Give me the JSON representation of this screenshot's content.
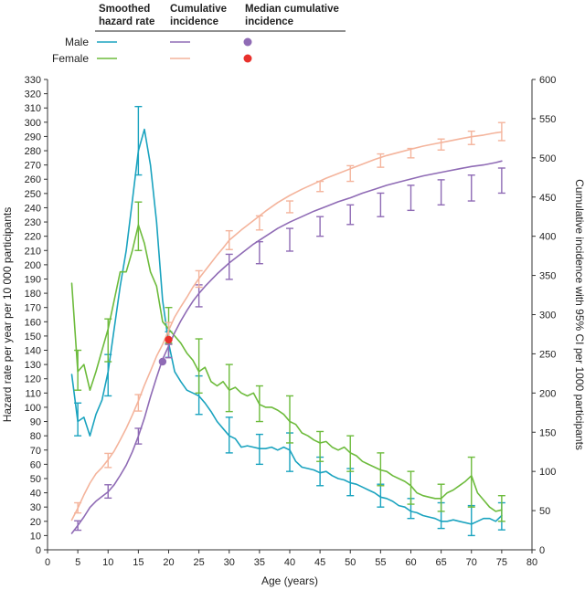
{
  "legend": {
    "headers": [
      "Smoothed\nhazard rate",
      "Cumulative\nincidence",
      "Median cumulative\nincidence"
    ],
    "rows": [
      "Male",
      "Female"
    ]
  },
  "colors": {
    "male_hazard": "#1aa3bf",
    "female_hazard": "#6dbb3c",
    "male_cumulative": "#8f6bb5",
    "female_cumulative": "#f4b49c",
    "male_median": "#8f6bb5",
    "female_median": "#e8312c",
    "axis": "#333333"
  },
  "chart_data": {
    "type": "line",
    "xlabel": "Age (years)",
    "ylabel": "Hazard rate per year per 10 000 participants",
    "y2label": "Cumulative incidence with 95% CI per 1000 participants",
    "xlim": [
      0,
      80
    ],
    "ylim": [
      0,
      330
    ],
    "y2lim": [
      0,
      600
    ],
    "xticks": [
      "0",
      "5",
      "10",
      "15",
      "20",
      "25",
      "30",
      "35",
      "40",
      "45",
      "50",
      "55",
      "60",
      "65",
      "70",
      "75",
      "80"
    ],
    "yticks": [
      "0",
      "10",
      "20",
      "30",
      "40",
      "50",
      "60",
      "70",
      "80",
      "90",
      "100",
      "110",
      "120",
      "130",
      "140",
      "150",
      "160",
      "170",
      "180",
      "190",
      "200",
      "210",
      "220",
      "230",
      "240",
      "250",
      "260",
      "270",
      "280",
      "290",
      "300",
      "310",
      "320",
      "330"
    ],
    "y2ticks": [
      "0",
      "50",
      "100",
      "150",
      "200",
      "250",
      "300",
      "350",
      "400",
      "450",
      "500",
      "550",
      "600"
    ],
    "series": [
      {
        "name": "Male",
        "kind": "smoothed hazard rate",
        "axis": "left",
        "x": [
          4,
          5,
          6,
          7,
          8,
          9,
          10,
          11,
          12,
          13,
          14,
          15,
          16,
          17,
          18,
          19,
          20,
          21,
          22,
          23,
          24,
          25,
          26,
          27,
          28,
          29,
          30,
          31,
          32,
          33,
          34,
          35,
          36,
          37,
          38,
          39,
          40,
          41,
          42,
          43,
          44,
          45,
          46,
          47,
          48,
          49,
          50,
          51,
          52,
          53,
          54,
          55,
          56,
          57,
          58,
          59,
          60,
          61,
          62,
          63,
          64,
          65,
          66,
          67,
          68,
          69,
          70,
          71,
          72,
          73,
          74,
          75
        ],
        "y": [
          123,
          90,
          93,
          80,
          95,
          105,
          125,
          155,
          185,
          210,
          245,
          280,
          295,
          270,
          230,
          175,
          145,
          125,
          118,
          112,
          110,
          108,
          103,
          97,
          90,
          85,
          80,
          78,
          72,
          73,
          72,
          71,
          71,
          72,
          70,
          72,
          70,
          62,
          58,
          57,
          56,
          54,
          55,
          52,
          50,
          49,
          47,
          46,
          44,
          42,
          40,
          37,
          36,
          34,
          31,
          30,
          27,
          26,
          24,
          23,
          22,
          20,
          20,
          21,
          20,
          19,
          18,
          20,
          22,
          22,
          20,
          24
        ],
        "ci_x": [
          5,
          10,
          15,
          20,
          25,
          30,
          35,
          40,
          45,
          50,
          55,
          60,
          65,
          70,
          75
        ],
        "ci_low": [
          80,
          108,
          263,
          135,
          95,
          68,
          60,
          55,
          45,
          38,
          30,
          22,
          15,
          10,
          14
        ],
        "ci_high": [
          103,
          137,
          311,
          153,
          122,
          93,
          81,
          82,
          65,
          57,
          46,
          36,
          33,
          31,
          33
        ]
      },
      {
        "name": "Female",
        "kind": "smoothed hazard rate",
        "axis": "left",
        "x": [
          4,
          5,
          6,
          7,
          8,
          9,
          10,
          11,
          12,
          13,
          14,
          15,
          16,
          17,
          18,
          19,
          20,
          21,
          22,
          23,
          24,
          25,
          26,
          27,
          28,
          29,
          30,
          31,
          32,
          33,
          34,
          35,
          36,
          37,
          38,
          39,
          40,
          41,
          42,
          43,
          44,
          45,
          46,
          47,
          48,
          49,
          50,
          51,
          52,
          53,
          54,
          55,
          56,
          57,
          58,
          59,
          60,
          61,
          62,
          63,
          64,
          65,
          66,
          67,
          68,
          69,
          70,
          71,
          72,
          73,
          74,
          75
        ],
        "y": [
          187,
          125,
          130,
          112,
          125,
          140,
          155,
          175,
          195,
          195,
          210,
          228,
          215,
          195,
          185,
          160,
          155,
          150,
          145,
          138,
          133,
          125,
          128,
          118,
          115,
          118,
          112,
          114,
          110,
          108,
          110,
          102,
          100,
          100,
          98,
          95,
          90,
          88,
          82,
          80,
          77,
          75,
          76,
          72,
          70,
          72,
          68,
          66,
          62,
          60,
          58,
          56,
          55,
          52,
          50,
          48,
          45,
          40,
          38,
          37,
          36,
          36,
          40,
          42,
          45,
          48,
          52,
          40,
          35,
          30,
          27,
          28
        ],
        "ci_x": [
          5,
          10,
          15,
          20,
          25,
          30,
          35,
          40,
          45,
          50,
          55,
          60,
          65,
          70,
          75
        ],
        "ci_low": [
          112,
          132,
          210,
          145,
          110,
          97,
          90,
          75,
          62,
          55,
          45,
          32,
          27,
          30,
          20
        ],
        "ci_high": [
          140,
          162,
          244,
          170,
          148,
          130,
          115,
          108,
          83,
          80,
          68,
          55,
          46,
          65,
          38
        ]
      },
      {
        "name": "Male",
        "kind": "cumulative incidence",
        "axis": "right",
        "x": [
          4,
          5,
          6,
          7,
          8,
          9,
          10,
          11,
          12,
          13,
          14,
          15,
          16,
          17,
          18,
          19,
          20,
          21,
          22,
          23,
          24,
          25,
          26,
          27,
          28,
          29,
          30,
          32,
          34,
          36,
          38,
          40,
          42,
          44,
          46,
          48,
          50,
          52,
          54,
          56,
          58,
          60,
          62,
          64,
          66,
          68,
          70,
          72,
          74,
          75
        ],
        "y": [
          21,
          31,
          42,
          54,
          62,
          68,
          74,
          83,
          95,
          108,
          125,
          145,
          168,
          195,
          220,
          243,
          260,
          277,
          292,
          305,
          317,
          327,
          336,
          344,
          352,
          359,
          366,
          378,
          390,
          400,
          410,
          418,
          425,
          432,
          438,
          444,
          449,
          455,
          460,
          465,
          469,
          473,
          477,
          480,
          483,
          486,
          489,
          491,
          494,
          496
        ],
        "ci_x": [
          5,
          10,
          15,
          20,
          25,
          30,
          35,
          40,
          45,
          50,
          55,
          60,
          65,
          70,
          75
        ],
        "ci_low": [
          25,
          66,
          135,
          245,
          310,
          345,
          365,
          381,
          400,
          415,
          425,
          433,
          440,
          445,
          455
        ],
        "ci_high": [
          37,
          83,
          155,
          262,
          338,
          377,
          393,
          410,
          425,
          440,
          455,
          465,
          472,
          478,
          487
        ]
      },
      {
        "name": "Female",
        "kind": "cumulative incidence",
        "axis": "right",
        "x": [
          4,
          5,
          6,
          7,
          8,
          9,
          10,
          11,
          12,
          13,
          14,
          15,
          16,
          17,
          18,
          19,
          20,
          21,
          22,
          23,
          24,
          25,
          26,
          27,
          28,
          29,
          30,
          32,
          34,
          36,
          38,
          40,
          42,
          44,
          46,
          48,
          50,
          52,
          54,
          56,
          58,
          60,
          62,
          64,
          66,
          68,
          70,
          72,
          74,
          75
        ],
        "y": [
          38,
          53,
          70,
          85,
          97,
          105,
          115,
          126,
          140,
          155,
          172,
          190,
          210,
          228,
          247,
          262,
          280,
          297,
          310,
          322,
          335,
          346,
          356,
          366,
          376,
          385,
          395,
          408,
          420,
          432,
          443,
          452,
          460,
          467,
          474,
          480,
          486,
          492,
          498,
          503,
          507,
          511,
          515,
          518,
          521,
          524,
          527,
          529,
          532,
          533
        ],
        "ci_x": [
          5,
          10,
          15,
          20,
          25,
          30,
          35,
          40,
          45,
          50,
          55,
          60,
          65,
          70,
          75
        ],
        "ci_low": [
          47,
          105,
          177,
          270,
          335,
          383,
          408,
          430,
          457,
          470,
          488,
          500,
          510,
          517,
          522
        ],
        "ci_high": [
          60,
          123,
          198,
          290,
          356,
          407,
          426,
          445,
          470,
          490,
          505,
          512,
          524,
          534,
          545
        ]
      }
    ],
    "median": [
      {
        "name": "Male",
        "x": 19,
        "y2": 240
      },
      {
        "name": "Female",
        "x": 20,
        "y2": 268
      }
    ]
  }
}
